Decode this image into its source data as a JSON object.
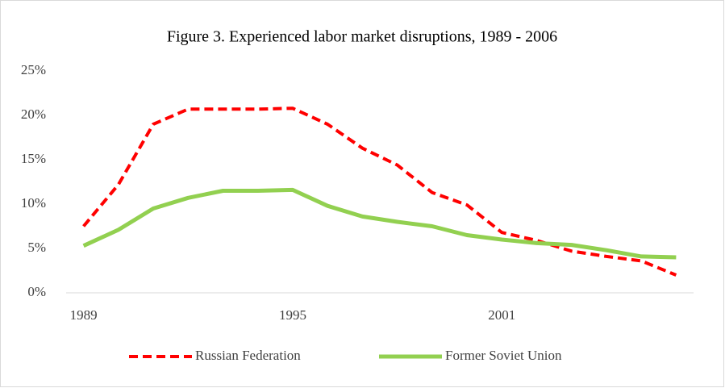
{
  "chart_data": {
    "type": "line",
    "title": "Figure 3. Experienced labor market disruptions, 1989 - 2006",
    "categories": [
      "1989",
      null,
      null,
      null,
      null,
      null,
      "1995",
      null,
      null,
      null,
      null,
      null,
      "2001",
      null,
      null,
      null,
      null,
      null
    ],
    "series": [
      {
        "name": "Russian Federation",
        "color": "#ff0000",
        "dashed": true,
        "values": [
          7.5,
          12.2,
          19.0,
          20.7,
          20.7,
          20.7,
          20.8,
          19.0,
          16.3,
          14.4,
          11.3,
          9.9,
          6.8,
          5.9,
          4.7,
          4.1,
          3.6,
          2.0
        ]
      },
      {
        "name": "Former Soviet Union",
        "color": "#92d050",
        "dashed": false,
        "values": [
          5.3,
          7.1,
          9.5,
          10.7,
          11.5,
          11.5,
          11.6,
          9.8,
          8.6,
          8.0,
          7.5,
          6.5,
          6.0,
          5.6,
          5.4,
          4.8,
          4.1,
          4.0
        ]
      }
    ],
    "ylim": [
      0,
      25
    ],
    "yticks": [
      {
        "value": 0,
        "label": "0%"
      },
      {
        "value": 5,
        "label": "5%"
      },
      {
        "value": 10,
        "label": "10%"
      },
      {
        "value": 15,
        "label": "15%"
      },
      {
        "value": 20,
        "label": "20%"
      },
      {
        "value": 25,
        "label": "25%"
      }
    ],
    "grid": false,
    "legend": "bottom"
  }
}
